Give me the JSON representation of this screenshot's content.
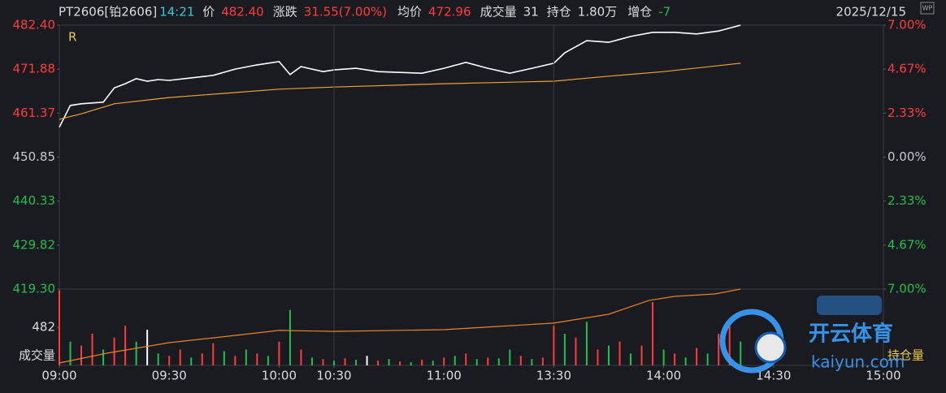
{
  "header": {
    "symbol": "PT2606[铂2606]",
    "time": "14:21",
    "items": [
      {
        "label": "价",
        "value": "482.40",
        "color": "#ff3b3b"
      },
      {
        "label": "涨跌",
        "value": "31.55(7.00%)",
        "color": "#ff3b3b"
      },
      {
        "label": "均价",
        "value": "472.96",
        "color": "#ff3b3b"
      },
      {
        "label": "成交量",
        "value": "31",
        "color": "#dcdcdc"
      },
      {
        "label": "持仓",
        "value": "1.80万",
        "color": "#dcdcdc"
      },
      {
        "label": "增仓",
        "value": "-7",
        "color": "#1fbf4e"
      }
    ],
    "date": "2025/12/15"
  },
  "watermark": {
    "text": "开云体育",
    "domain": "kaiyun.com"
  },
  "chart_data": [
    {
      "type": "line",
      "marker": "R",
      "xlim": [
        0,
        225
      ],
      "ylim": [
        419.3,
        482.4
      ],
      "yticks": [
        {
          "value": 482.4,
          "label": "482.40"
        },
        471.88,
        461.37,
        450.85,
        440.33,
        429.82,
        {
          "value": 419.3,
          "label": "419.30"
        }
      ],
      "y2lim": [
        -7,
        7
      ],
      "y2ticks": [
        {
          "value": 7,
          "label": "7.00%"
        },
        {
          "value": 4.67,
          "label": "4.67%"
        },
        {
          "value": 2.33,
          "label": "2.33%"
        },
        {
          "value": 0,
          "label": "0.00%"
        },
        {
          "value": -2.33,
          "label": "2.33%"
        },
        {
          "value": -4.67,
          "label": "4.67%"
        },
        {
          "value": -7,
          "label": "7.00%"
        }
      ],
      "up_color": "#ff3b3b",
      "down_color": "#1fbf4e",
      "flat_color": "#c8c8c8",
      "series": [
        {
          "color": "#ffffff",
          "x": [
            0,
            3,
            6,
            9,
            12,
            15,
            18,
            21,
            24,
            27,
            30,
            36,
            42,
            48,
            54,
            60,
            63,
            66,
            72,
            75,
            81,
            87,
            93,
            99,
            105,
            111,
            117,
            123,
            129,
            135,
            138,
            144,
            150,
            156,
            162,
            168,
            174,
            180,
            186
          ],
          "values": [
            458.0,
            463.2,
            463.6,
            463.8,
            464.0,
            467.4,
            468.4,
            469.6,
            469.0,
            469.4,
            469.2,
            469.8,
            470.4,
            471.9,
            472.9,
            473.7,
            470.6,
            472.5,
            471.3,
            471.7,
            472.1,
            471.3,
            471.1,
            470.9,
            472.1,
            473.5,
            472.1,
            470.9,
            472.1,
            473.3,
            475.8,
            478.7,
            478.3,
            479.7,
            480.7,
            480.7,
            480.3,
            481.0,
            482.4
          ]
        },
        {
          "color": "#e8a33a",
          "x": [
            0,
            6,
            15,
            30,
            45,
            60,
            75,
            105,
            135,
            150,
            165,
            186
          ],
          "values": [
            459.9,
            461.2,
            463.6,
            465.1,
            466.1,
            467.1,
            467.6,
            468.4,
            469.0,
            470.2,
            471.3,
            473.3
          ]
        }
      ]
    },
    {
      "type": "bar",
      "ylabel": "成交量",
      "y2label": "持仓量",
      "xlim": [
        0,
        225
      ],
      "xticks": [
        {
          "value": 0,
          "label": "09:00"
        },
        {
          "value": 30,
          "label": "09:30"
        },
        {
          "value": 60,
          "label": "10:00"
        },
        {
          "value": 75,
          "label": "10:30"
        },
        {
          "value": 105,
          "label": "11:00"
        },
        {
          "value": 135,
          "label": "13:30"
        },
        {
          "value": 165,
          "label": "14:00"
        },
        {
          "value": 195,
          "label": "14:30"
        },
        {
          "value": 225,
          "label": "15:00"
        }
      ],
      "session_break_ticks": [
        3,
        5
      ],
      "ylim": [
        0,
        964
      ],
      "yticks": [
        482
      ],
      "x": [
        0,
        3,
        6,
        9,
        12,
        15,
        18,
        21,
        24,
        27,
        30,
        33,
        36,
        39,
        42,
        45,
        48,
        51,
        54,
        57,
        60,
        63,
        66,
        69,
        72,
        75,
        78,
        81,
        84,
        87,
        90,
        93,
        96,
        99,
        102,
        105,
        108,
        111,
        114,
        117,
        120,
        123,
        126,
        129,
        132,
        135,
        138,
        141,
        144,
        147,
        150,
        153,
        156,
        159,
        162,
        165,
        168,
        171,
        174,
        177,
        180,
        183,
        186
      ],
      "values": [
        950,
        300,
        250,
        400,
        200,
        350,
        500,
        300,
        450,
        150,
        120,
        200,
        100,
        150,
        280,
        180,
        120,
        200,
        150,
        120,
        300,
        700,
        200,
        100,
        80,
        60,
        90,
        70,
        120,
        60,
        80,
        50,
        40,
        70,
        60,
        100,
        120,
        150,
        80,
        100,
        90,
        200,
        120,
        80,
        100,
        500,
        400,
        350,
        550,
        200,
        250,
        300,
        150,
        250,
        800,
        200,
        150,
        100,
        220,
        150,
        400,
        500,
        300
      ],
      "colors": [
        "#ff3b3b",
        "#1fbf4e",
        "#ff3b3b",
        "#ff3b3b",
        "#1fbf4e",
        "#ff3b3b",
        "#ff3b3b",
        "#1fbf4e",
        "#ffffff",
        "#1fbf4e",
        "#ff3b3b",
        "#ff3b3b",
        "#1fbf4e",
        "#ff3b3b",
        "#ff3b3b",
        "#1fbf4e",
        "#ff3b3b",
        "#1fbf4e",
        "#ff3b3b",
        "#1fbf4e",
        "#ff3b3b",
        "#1fbf4e",
        "#ff3b3b",
        "#1fbf4e",
        "#ff3b3b",
        "#1fbf4e",
        "#ff3b3b",
        "#1fbf4e",
        "#ffffff",
        "#ff3b3b",
        "#1fbf4e",
        "#ff3b3b",
        "#1fbf4e",
        "#ff3b3b",
        "#1fbf4e",
        "#ff3b3b",
        "#1fbf4e",
        "#ff3b3b",
        "#1fbf4e",
        "#ff3b3b",
        "#1fbf4e",
        "#1fbf4e",
        "#ff3b3b",
        "#1fbf4e",
        "#ff3b3b",
        "#ff3b3b",
        "#1fbf4e",
        "#ff3b3b",
        "#1fbf4e",
        "#ff3b3b",
        "#1fbf4e",
        "#ff3b3b",
        "#1fbf4e",
        "#ff3b3b",
        "#ff3b3b",
        "#1fbf4e",
        "#ff3b3b",
        "#1fbf4e",
        "#ff3b3b",
        "#1fbf4e",
        "#ff3b3b",
        "#ff3b3b",
        "#1fbf4e"
      ],
      "y2lim": [
        17500,
        18000
      ],
      "series": [
        {
          "axis": "y2",
          "color": "#e8832a",
          "x": [
            0,
            13,
            30,
            46,
            60,
            75,
            105,
            135,
            150,
            161,
            168,
            179,
            186
          ],
          "values": [
            17516,
            17580,
            17649,
            17691,
            17729,
            17723,
            17734,
            17777,
            17835,
            17926,
            17952,
            17968,
            18000
          ]
        }
      ]
    }
  ]
}
